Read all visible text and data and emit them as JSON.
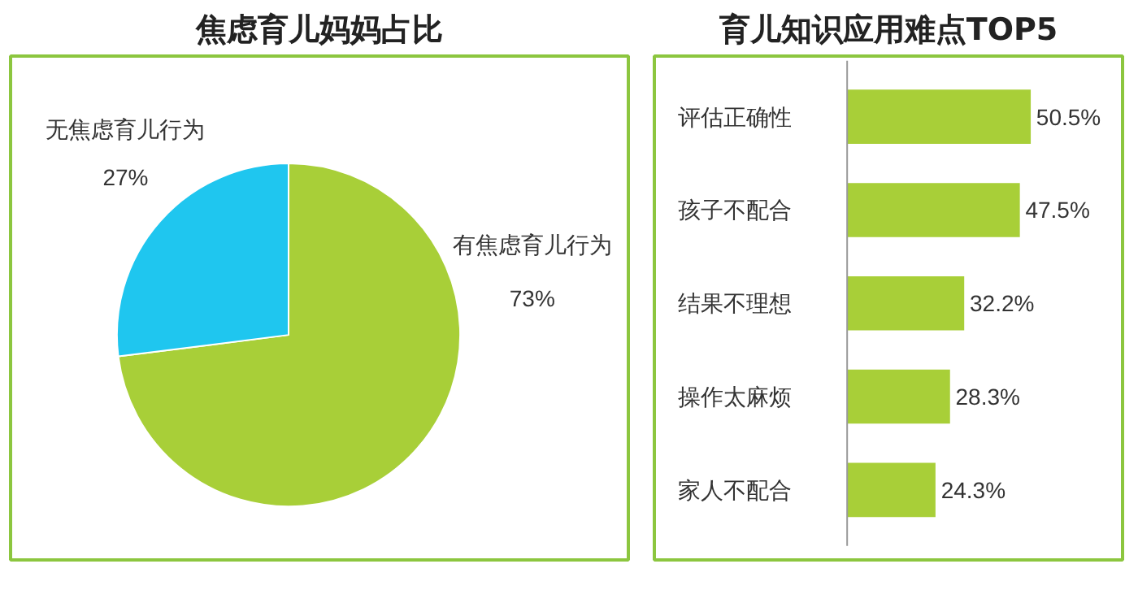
{
  "chart_data": [
    {
      "type": "pie",
      "title": "焦虑育儿妈妈占比",
      "categories": [
        "有焦虑育儿行为",
        "无焦虑育儿行为"
      ],
      "values": [
        73,
        27
      ],
      "colors": [
        "#a8cf38",
        "#1fc6ef"
      ],
      "value_labels": [
        "73%",
        "27%"
      ]
    },
    {
      "type": "bar",
      "orientation": "horizontal",
      "title": "育儿知识应用难点TOP5",
      "categories": [
        "评估正确性",
        "孩子不配合",
        "结果不理想",
        "操作太麻烦",
        "家人不配合"
      ],
      "values": [
        50.5,
        47.5,
        32.2,
        28.3,
        24.3
      ],
      "color": "#a8cf38",
      "value_labels": [
        "50.5%",
        "47.5%",
        "32.2%",
        "28.3%",
        "24.3%"
      ],
      "tick_labels": "y"
    }
  ]
}
